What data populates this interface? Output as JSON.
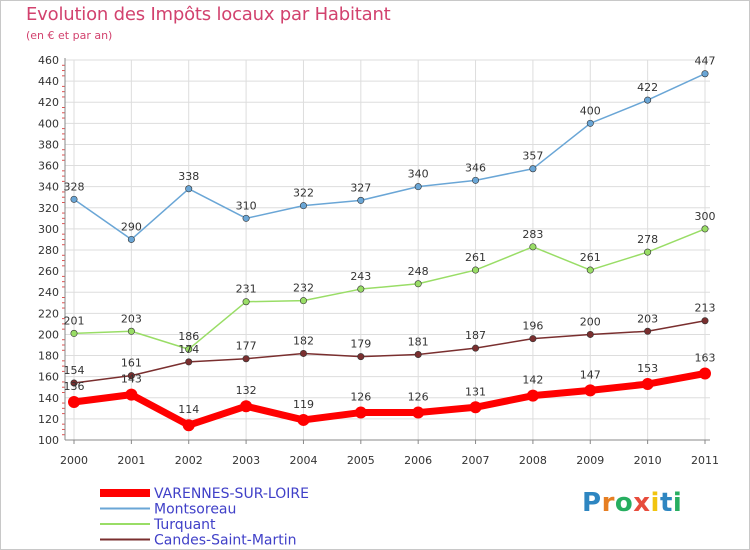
{
  "title": "Evolution des Impôts locaux par Habitant",
  "subtitle": "(en € et par an)",
  "logo": {
    "letters": [
      "P",
      "r",
      "o",
      "x",
      "i",
      "t",
      "i"
    ],
    "colors": [
      "#2e86c1",
      "#e67e22",
      "#27ae60",
      "#e74c3c",
      "#f1c40f",
      "#2e86c1",
      "#27ae60"
    ]
  },
  "chart_data": {
    "type": "line",
    "title": "Evolution des Impôts locaux par Habitant",
    "subtitle": "(en € et par an)",
    "x": [
      "2000",
      "2001",
      "2002",
      "2003",
      "2004",
      "2005",
      "2006",
      "2007",
      "2008",
      "2009",
      "2010",
      "2011"
    ],
    "ylim": [
      100,
      460
    ],
    "yticks": [
      "100",
      "120",
      "140",
      "160",
      "180",
      "200",
      "220",
      "240",
      "260",
      "280",
      "300",
      "320",
      "340",
      "360",
      "380",
      "400",
      "420",
      "440",
      "460"
    ],
    "grid": true,
    "legend": "bottom-left",
    "series": [
      {
        "name": "VARENNES-SUR-LOIRE",
        "color": "#ff0000",
        "values": [
          136,
          143,
          114,
          132,
          119,
          126,
          126,
          131,
          142,
          147,
          153,
          163
        ],
        "labels": [
          "136",
          "143",
          "114",
          "132",
          "119",
          "126",
          "126",
          "131",
          "142",
          "147",
          "153",
          "163"
        ]
      },
      {
        "name": "Montsoreau",
        "color": "#6aa6d6",
        "values": [
          328,
          290,
          338,
          310,
          322,
          327,
          340,
          346,
          357,
          400,
          422,
          447
        ],
        "labels": [
          "328",
          "290",
          "338",
          "310",
          "322",
          "327",
          "340",
          "346",
          "357",
          "400",
          "422",
          "447"
        ]
      },
      {
        "name": "Turquant",
        "color": "#99dd66",
        "values": [
          201,
          203,
          186,
          231,
          232,
          243,
          248,
          261,
          283,
          261,
          278,
          300
        ],
        "labels": [
          "201",
          "203",
          "186",
          "231",
          "232",
          "243",
          "248",
          "261",
          "283",
          "261",
          "278",
          "300"
        ]
      },
      {
        "name": "Candes-Saint-Martin",
        "color": "#7a2f2f",
        "values": [
          154,
          161,
          174,
          177,
          182,
          179,
          181,
          187,
          196,
          200,
          203,
          213
        ],
        "labels": [
          "154",
          "161",
          "174",
          "177",
          "182",
          "179",
          "181",
          "187",
          "196",
          "200",
          "203",
          "213"
        ]
      }
    ]
  }
}
